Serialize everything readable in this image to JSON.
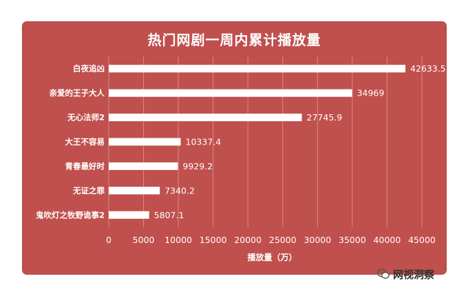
{
  "chart_data": {
    "type": "bar",
    "orientation": "horizontal",
    "title": "热门网剧一周内累计播放量",
    "xlabel": "播放量（万）",
    "ylabel": "",
    "categories": [
      "白夜追凶",
      "亲爱的王子大人",
      "无心法师2",
      "大王不容易",
      "青春最好时",
      "无证之罪",
      "鬼吹灯之牧野诡事2"
    ],
    "values": [
      42633.5,
      34969,
      27745.9,
      10337.4,
      9929.2,
      7340.2,
      5807.1
    ],
    "value_labels": [
      "42633.5",
      "34969",
      "27745.9",
      "10337.4",
      "9929.2",
      "7340.2",
      "5807.1"
    ],
    "xlim": [
      0,
      45000
    ],
    "xticks": [
      0,
      5000,
      10000,
      15000,
      20000,
      25000,
      30000,
      35000,
      40000,
      45000
    ],
    "xtick_labels": [
      "0",
      "5000",
      "10000",
      "15000",
      "20000",
      "25000",
      "30000",
      "35000",
      "40000",
      "45000"
    ],
    "grid": true,
    "legend": "none",
    "colors": {
      "background": "#c0504d",
      "bar": "#ffffff",
      "text": "#ffffff",
      "grid": "#d98a88"
    }
  },
  "watermark": {
    "text": "网视洞察",
    "icon": "wechat-icon"
  }
}
